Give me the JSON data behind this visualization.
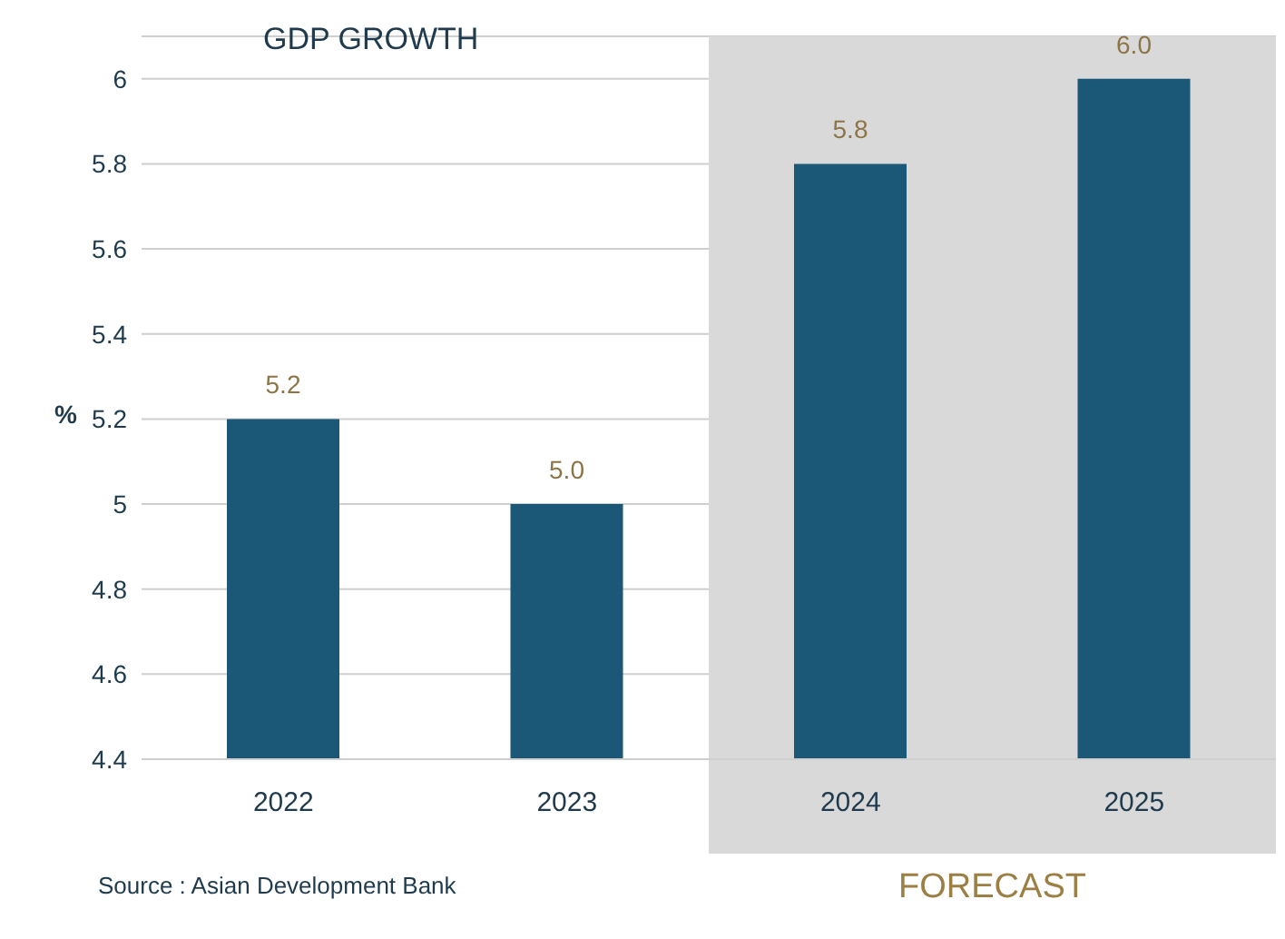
{
  "chart_data": {
    "type": "bar",
    "title": "GDP GROWTH",
    "ylabel": "%",
    "categories": [
      "2022",
      "2023",
      "2024",
      "2025"
    ],
    "values": [
      5.2,
      5.0,
      5.8,
      6.0
    ],
    "color": "#1b5877",
    "value_labels": [
      "5.2",
      "5.0",
      "5.8",
      "6.0"
    ],
    "ylim": [
      4.4,
      6.1
    ],
    "yticks": [
      4.4,
      4.6,
      4.8,
      5,
      5.2,
      5.4,
      5.6,
      5.8,
      6
    ],
    "grid": "y",
    "bands": [
      {
        "axis": "x",
        "from": "2024",
        "to": "2025",
        "label": "FORECAST",
        "color": "#d9d9d9"
      }
    ],
    "annotations": [
      "Source : Asian Development Bank"
    ]
  }
}
